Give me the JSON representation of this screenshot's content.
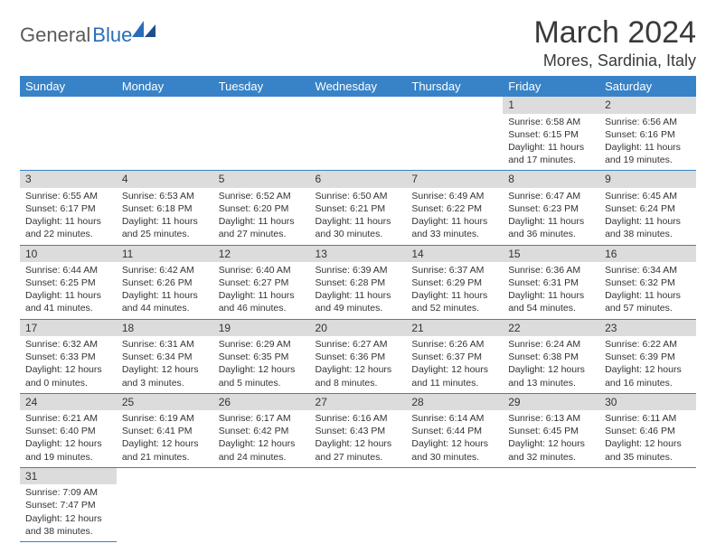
{
  "logo": {
    "text1": "General",
    "text2": "Blue"
  },
  "title": "March 2024",
  "location": "Mores, Sardinia, Italy",
  "day_headers": [
    "Sunday",
    "Monday",
    "Tuesday",
    "Wednesday",
    "Thursday",
    "Friday",
    "Saturday"
  ],
  "colors": {
    "header_bg": "#3883c7",
    "header_fg": "#ffffff",
    "daybar_bg": "#dcdcdc",
    "rule": "#3883c7",
    "logo_gray": "#5a5a5a",
    "logo_blue": "#2a6db8"
  },
  "layout": {
    "first_weekday_index": 5,
    "days_in_month": 31
  },
  "days": {
    "1": {
      "sunrise": "6:58 AM",
      "sunset": "6:15 PM",
      "daylight": "11 hours and 17 minutes."
    },
    "2": {
      "sunrise": "6:56 AM",
      "sunset": "6:16 PM",
      "daylight": "11 hours and 19 minutes."
    },
    "3": {
      "sunrise": "6:55 AM",
      "sunset": "6:17 PM",
      "daylight": "11 hours and 22 minutes."
    },
    "4": {
      "sunrise": "6:53 AM",
      "sunset": "6:18 PM",
      "daylight": "11 hours and 25 minutes."
    },
    "5": {
      "sunrise": "6:52 AM",
      "sunset": "6:20 PM",
      "daylight": "11 hours and 27 minutes."
    },
    "6": {
      "sunrise": "6:50 AM",
      "sunset": "6:21 PM",
      "daylight": "11 hours and 30 minutes."
    },
    "7": {
      "sunrise": "6:49 AM",
      "sunset": "6:22 PM",
      "daylight": "11 hours and 33 minutes."
    },
    "8": {
      "sunrise": "6:47 AM",
      "sunset": "6:23 PM",
      "daylight": "11 hours and 36 minutes."
    },
    "9": {
      "sunrise": "6:45 AM",
      "sunset": "6:24 PM",
      "daylight": "11 hours and 38 minutes."
    },
    "10": {
      "sunrise": "6:44 AM",
      "sunset": "6:25 PM",
      "daylight": "11 hours and 41 minutes."
    },
    "11": {
      "sunrise": "6:42 AM",
      "sunset": "6:26 PM",
      "daylight": "11 hours and 44 minutes."
    },
    "12": {
      "sunrise": "6:40 AM",
      "sunset": "6:27 PM",
      "daylight": "11 hours and 46 minutes."
    },
    "13": {
      "sunrise": "6:39 AM",
      "sunset": "6:28 PM",
      "daylight": "11 hours and 49 minutes."
    },
    "14": {
      "sunrise": "6:37 AM",
      "sunset": "6:29 PM",
      "daylight": "11 hours and 52 minutes."
    },
    "15": {
      "sunrise": "6:36 AM",
      "sunset": "6:31 PM",
      "daylight": "11 hours and 54 minutes."
    },
    "16": {
      "sunrise": "6:34 AM",
      "sunset": "6:32 PM",
      "daylight": "11 hours and 57 minutes."
    },
    "17": {
      "sunrise": "6:32 AM",
      "sunset": "6:33 PM",
      "daylight": "12 hours and 0 minutes."
    },
    "18": {
      "sunrise": "6:31 AM",
      "sunset": "6:34 PM",
      "daylight": "12 hours and 3 minutes."
    },
    "19": {
      "sunrise": "6:29 AM",
      "sunset": "6:35 PM",
      "daylight": "12 hours and 5 minutes."
    },
    "20": {
      "sunrise": "6:27 AM",
      "sunset": "6:36 PM",
      "daylight": "12 hours and 8 minutes."
    },
    "21": {
      "sunrise": "6:26 AM",
      "sunset": "6:37 PM",
      "daylight": "12 hours and 11 minutes."
    },
    "22": {
      "sunrise": "6:24 AM",
      "sunset": "6:38 PM",
      "daylight": "12 hours and 13 minutes."
    },
    "23": {
      "sunrise": "6:22 AM",
      "sunset": "6:39 PM",
      "daylight": "12 hours and 16 minutes."
    },
    "24": {
      "sunrise": "6:21 AM",
      "sunset": "6:40 PM",
      "daylight": "12 hours and 19 minutes."
    },
    "25": {
      "sunrise": "6:19 AM",
      "sunset": "6:41 PM",
      "daylight": "12 hours and 21 minutes."
    },
    "26": {
      "sunrise": "6:17 AM",
      "sunset": "6:42 PM",
      "daylight": "12 hours and 24 minutes."
    },
    "27": {
      "sunrise": "6:16 AM",
      "sunset": "6:43 PM",
      "daylight": "12 hours and 27 minutes."
    },
    "28": {
      "sunrise": "6:14 AM",
      "sunset": "6:44 PM",
      "daylight": "12 hours and 30 minutes."
    },
    "29": {
      "sunrise": "6:13 AM",
      "sunset": "6:45 PM",
      "daylight": "12 hours and 32 minutes."
    },
    "30": {
      "sunrise": "6:11 AM",
      "sunset": "6:46 PM",
      "daylight": "12 hours and 35 minutes."
    },
    "31": {
      "sunrise": "7:09 AM",
      "sunset": "7:47 PM",
      "daylight": "12 hours and 38 minutes."
    }
  },
  "labels": {
    "sunrise": "Sunrise: ",
    "sunset": "Sunset: ",
    "daylight": "Daylight: "
  }
}
